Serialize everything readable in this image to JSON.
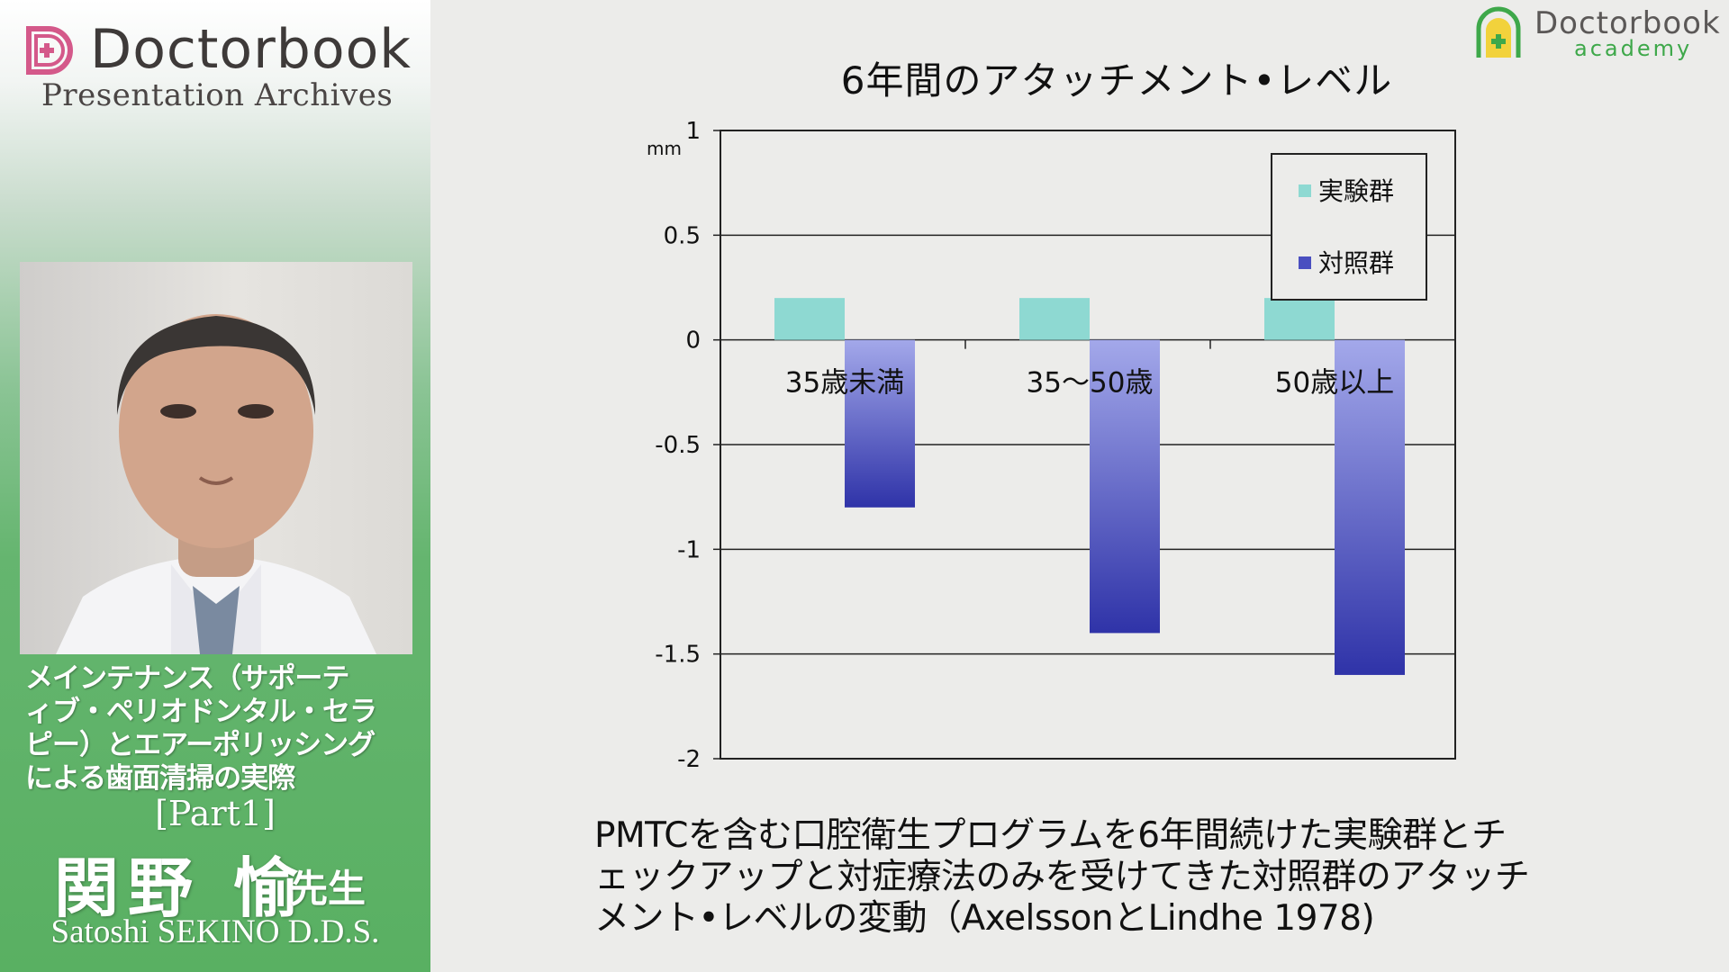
{
  "sidebar": {
    "brand_name": "Doctorbook",
    "brand_subtitle": "Presentation Archives",
    "lecture_title_lines": [
      "メインテナンス（サポーテ",
      "ィブ・ペリオドンタル・セラ",
      "ピー）とエアーポリッシング",
      "による歯面清掃の実際"
    ],
    "lecture_part": "[Part1]",
    "speaker_name": "関野 愉",
    "speaker_honorific": "先生",
    "speaker_name_roman": "Satoshi SEKINO D.D.S."
  },
  "academy": {
    "name": "Doctorbook",
    "subtitle": "academy"
  },
  "chart_data": {
    "type": "bar",
    "title": "6年間のアタッチメント•レベル",
    "ylabel": "mm",
    "ylim": [
      -2,
      1
    ],
    "yticks": [
      1,
      0.5,
      0,
      -0.5,
      -1,
      -1.5,
      -2
    ],
    "ytick_labels": [
      "1",
      "0.5",
      "0",
      "-0.5",
      "-1",
      "-1.5",
      "-2"
    ],
    "categories": [
      "35歳未満",
      "35〜50歳",
      "50歳以上"
    ],
    "series": [
      {
        "name": "実験群",
        "color": "#8ed9d2",
        "values": [
          0.2,
          0.2,
          0.2
        ]
      },
      {
        "name": "対照群",
        "color": "#4a4fc0",
        "values": [
          -0.8,
          -1.4,
          -1.6
        ]
      }
    ],
    "legend_position": "top-right",
    "grid": true
  },
  "caption": {
    "lines": [
      "PMTCを含む口腔衛生プログラムを6年間続けた実験群とチ",
      "ェックアップと対症療法のみを受けてきた対照群のアタッチ",
      "メント•レベルの変動（AxelssonとLindhe 1978)"
    ]
  },
  "colors": {
    "brand_pink": "#d4598a",
    "academy_green": "#3ea84a",
    "academy_yellow": "#f2d23c",
    "sidebar_green": "#59b062"
  }
}
